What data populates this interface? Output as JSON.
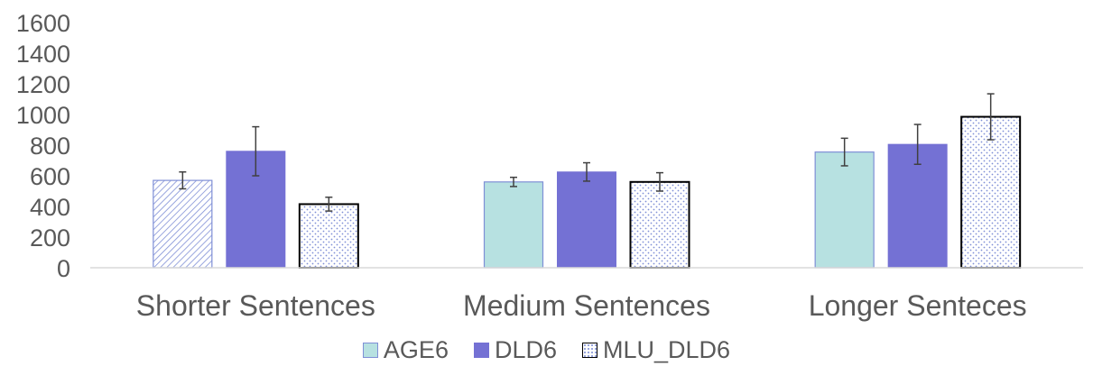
{
  "chart_data": {
    "type": "bar",
    "title": "",
    "xlabel": "",
    "ylabel": "",
    "ylim": [
      0,
      1600
    ],
    "yticks": [
      "0",
      "200",
      "400",
      "600",
      "800",
      "1000",
      "1200",
      "1400",
      "1600"
    ],
    "categories": [
      "Shorter Sentences",
      "Medium Sentences",
      "Longer Senteces"
    ],
    "grid": false,
    "legend_position": "bottom",
    "series": [
      {
        "name": "AGE6",
        "values": [
          570,
          560,
          755
        ],
        "error": [
          55,
          30,
          90
        ],
        "color": "#b7e1e1"
      },
      {
        "name": "DLD6",
        "values": [
          760,
          625,
          805
        ],
        "error": [
          160,
          60,
          130
        ],
        "color": "#7471d4"
      },
      {
        "name": "MLU_DLD6",
        "values": [
          415,
          560,
          985
        ],
        "error": [
          45,
          60,
          150
        ],
        "color": "#ffffff"
      }
    ]
  }
}
